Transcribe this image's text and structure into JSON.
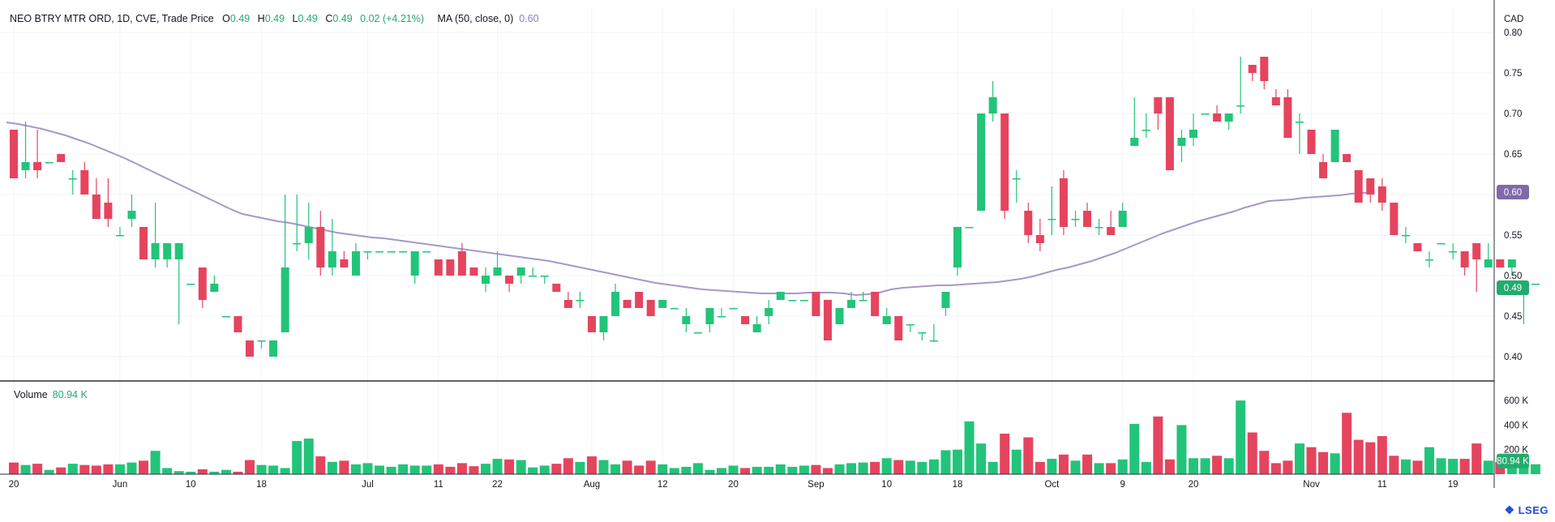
{
  "header": {
    "symbol": "NEO BTRY MTR ORD, 1D, CVE, Trade Price",
    "o_label": "O",
    "o_value": "0.49",
    "h_label": "H",
    "h_value": "0.49",
    "l_label": "L",
    "l_value": "0.49",
    "c_label": "C",
    "c_value": "0.49",
    "change": "0.02 (+4.21%)",
    "ma_label": "MA (50, close, 0)",
    "ma_value": "0.60"
  },
  "volume_header": {
    "label": "Volume",
    "value": "80.94 K"
  },
  "currency": "CAD",
  "logo": {
    "text": "LSEG"
  },
  "colors": {
    "up": "#22c47a",
    "down": "#e5445f",
    "ma": "#a896cc",
    "grid": "#f0f3fa",
    "axis_text": "#131722"
  },
  "badges": {
    "ma": "0.60",
    "last": "0.49",
    "volume": "80.94 K"
  },
  "chart_data": {
    "type": "candlestick",
    "y_ticks": [
      "0.80",
      "0.75",
      "0.70",
      "0.65",
      "0.60",
      "0.55",
      "0.50",
      "0.45",
      "0.40"
    ],
    "ylim": [
      0.37,
      0.83
    ],
    "volume_ticks": [
      "600 K",
      "400 K",
      "200 K"
    ],
    "volume_ylim": [
      0,
      680
    ],
    "x_ticks": [
      {
        "label": "20",
        "i": 0
      },
      {
        "label": "Jun",
        "i": 9
      },
      {
        "label": "10",
        "i": 15
      },
      {
        "label": "18",
        "i": 21
      },
      {
        "label": "Jul",
        "i": 30
      },
      {
        "label": "11",
        "i": 36
      },
      {
        "label": "22",
        "i": 41
      },
      {
        "label": "Aug",
        "i": 49
      },
      {
        "label": "12",
        "i": 55
      },
      {
        "label": "20",
        "i": 61
      },
      {
        "label": "Sep",
        "i": 68
      },
      {
        "label": "10",
        "i": 74
      },
      {
        "label": "18",
        "i": 80
      },
      {
        "label": "Oct",
        "i": 88
      },
      {
        "label": "9",
        "i": 94
      },
      {
        "label": "20",
        "i": 100
      },
      {
        "label": "Nov",
        "i": 110
      },
      {
        "label": "11",
        "i": 116
      },
      {
        "label": "19",
        "i": 122
      }
    ],
    "candles": [
      [
        0.68,
        0.68,
        0.62,
        0.62,
        95
      ],
      [
        0.63,
        0.69,
        0.62,
        0.64,
        75
      ],
      [
        0.64,
        0.68,
        0.62,
        0.63,
        85
      ],
      [
        0.64,
        0.64,
        0.64,
        0.64,
        35
      ],
      [
        0.65,
        0.65,
        0.64,
        0.64,
        55
      ],
      [
        0.62,
        0.63,
        0.6,
        0.62,
        85
      ],
      [
        0.63,
        0.64,
        0.6,
        0.6,
        75
      ],
      [
        0.6,
        0.62,
        0.57,
        0.57,
        70
      ],
      [
        0.59,
        0.62,
        0.56,
        0.57,
        80
      ],
      [
        0.55,
        0.56,
        0.55,
        0.55,
        80
      ],
      [
        0.57,
        0.6,
        0.56,
        0.58,
        95
      ],
      [
        0.56,
        0.56,
        0.52,
        0.52,
        110
      ],
      [
        0.52,
        0.59,
        0.51,
        0.54,
        190
      ],
      [
        0.52,
        0.54,
        0.51,
        0.54,
        50
      ],
      [
        0.52,
        0.54,
        0.44,
        0.54,
        25
      ],
      [
        0.49,
        0.49,
        0.49,
        0.49,
        20
      ],
      [
        0.51,
        0.51,
        0.46,
        0.47,
        40
      ],
      [
        0.48,
        0.5,
        0.48,
        0.49,
        20
      ],
      [
        0.45,
        0.45,
        0.45,
        0.45,
        35
      ],
      [
        0.45,
        0.45,
        0.43,
        0.43,
        20
      ],
      [
        0.42,
        0.42,
        0.4,
        0.4,
        115
      ],
      [
        0.42,
        0.42,
        0.41,
        0.42,
        75
      ],
      [
        0.4,
        0.42,
        0.4,
        0.42,
        70
      ],
      [
        0.43,
        0.6,
        0.43,
        0.51,
        50
      ],
      [
        0.54,
        0.6,
        0.53,
        0.54,
        270
      ],
      [
        0.54,
        0.59,
        0.52,
        0.56,
        290
      ],
      [
        0.56,
        0.58,
        0.5,
        0.51,
        145
      ],
      [
        0.51,
        0.57,
        0.5,
        0.53,
        100
      ],
      [
        0.52,
        0.53,
        0.51,
        0.51,
        110
      ],
      [
        0.5,
        0.54,
        0.5,
        0.53,
        80
      ],
      [
        0.53,
        0.53,
        0.52,
        0.53,
        90
      ],
      [
        0.53,
        0.53,
        0.53,
        0.53,
        70
      ],
      [
        0.53,
        0.53,
        0.53,
        0.53,
        60
      ],
      [
        0.53,
        0.53,
        0.53,
        0.53,
        80
      ],
      [
        0.5,
        0.53,
        0.49,
        0.53,
        70
      ],
      [
        0.53,
        0.53,
        0.53,
        0.53,
        70
      ],
      [
        0.52,
        0.52,
        0.5,
        0.5,
        80
      ],
      [
        0.52,
        0.52,
        0.5,
        0.5,
        60
      ],
      [
        0.53,
        0.54,
        0.5,
        0.5,
        90
      ],
      [
        0.51,
        0.51,
        0.5,
        0.5,
        65
      ],
      [
        0.49,
        0.51,
        0.48,
        0.5,
        85
      ],
      [
        0.5,
        0.53,
        0.5,
        0.51,
        125
      ],
      [
        0.5,
        0.5,
        0.48,
        0.49,
        120
      ],
      [
        0.5,
        0.51,
        0.49,
        0.51,
        115
      ],
      [
        0.5,
        0.51,
        0.5,
        0.5,
        55
      ],
      [
        0.5,
        0.5,
        0.49,
        0.5,
        70
      ],
      [
        0.49,
        0.49,
        0.48,
        0.48,
        85
      ],
      [
        0.47,
        0.48,
        0.46,
        0.46,
        130
      ],
      [
        0.47,
        0.48,
        0.46,
        0.47,
        100
      ],
      [
        0.45,
        0.45,
        0.43,
        0.43,
        145
      ],
      [
        0.43,
        0.45,
        0.42,
        0.45,
        115
      ],
      [
        0.45,
        0.49,
        0.45,
        0.48,
        80
      ],
      [
        0.47,
        0.47,
        0.46,
        0.46,
        110
      ],
      [
        0.48,
        0.48,
        0.46,
        0.46,
        70
      ],
      [
        0.47,
        0.47,
        0.45,
        0.45,
        110
      ],
      [
        0.46,
        0.47,
        0.46,
        0.47,
        80
      ],
      [
        0.46,
        0.46,
        0.46,
        0.46,
        50
      ],
      [
        0.44,
        0.46,
        0.43,
        0.45,
        60
      ],
      [
        0.43,
        0.43,
        0.43,
        0.43,
        90
      ],
      [
        0.44,
        0.46,
        0.43,
        0.46,
        35
      ],
      [
        0.45,
        0.46,
        0.45,
        0.45,
        50
      ],
      [
        0.46,
        0.46,
        0.46,
        0.46,
        70
      ],
      [
        0.45,
        0.45,
        0.44,
        0.44,
        50
      ],
      [
        0.43,
        0.45,
        0.43,
        0.44,
        60
      ],
      [
        0.45,
        0.47,
        0.44,
        0.46,
        60
      ],
      [
        0.47,
        0.48,
        0.47,
        0.48,
        80
      ],
      [
        0.47,
        0.47,
        0.47,
        0.47,
        60
      ],
      [
        0.47,
        0.47,
        0.47,
        0.47,
        70
      ],
      [
        0.48,
        0.48,
        0.45,
        0.45,
        75
      ],
      [
        0.47,
        0.47,
        0.42,
        0.42,
        50
      ],
      [
        0.44,
        0.46,
        0.44,
        0.46,
        80
      ],
      [
        0.46,
        0.48,
        0.46,
        0.47,
        90
      ],
      [
        0.47,
        0.48,
        0.47,
        0.47,
        95
      ],
      [
        0.48,
        0.48,
        0.45,
        0.45,
        100
      ],
      [
        0.44,
        0.46,
        0.44,
        0.45,
        130
      ],
      [
        0.45,
        0.45,
        0.42,
        0.42,
        115
      ],
      [
        0.44,
        0.44,
        0.43,
        0.44,
        110
      ],
      [
        0.43,
        0.43,
        0.42,
        0.43,
        100
      ],
      [
        0.42,
        0.44,
        0.42,
        0.42,
        120
      ],
      [
        0.46,
        0.48,
        0.45,
        0.48,
        195
      ],
      [
        0.51,
        0.56,
        0.5,
        0.56,
        200
      ],
      [
        0.56,
        0.56,
        0.56,
        0.56,
        430
      ],
      [
        0.58,
        0.7,
        0.58,
        0.7,
        250
      ],
      [
        0.7,
        0.74,
        0.69,
        0.72,
        100
      ],
      [
        0.7,
        0.7,
        0.57,
        0.58,
        330
      ],
      [
        0.62,
        0.63,
        0.59,
        0.62,
        200
      ],
      [
        0.58,
        0.59,
        0.54,
        0.55,
        300
      ],
      [
        0.55,
        0.57,
        0.53,
        0.54,
        100
      ],
      [
        0.57,
        0.61,
        0.55,
        0.57,
        125
      ],
      [
        0.62,
        0.63,
        0.55,
        0.56,
        160
      ],
      [
        0.57,
        0.58,
        0.56,
        0.57,
        110
      ],
      [
        0.58,
        0.59,
        0.56,
        0.56,
        160
      ],
      [
        0.56,
        0.57,
        0.55,
        0.56,
        90
      ],
      [
        0.56,
        0.58,
        0.55,
        0.55,
        90
      ],
      [
        0.56,
        0.59,
        0.56,
        0.58,
        120
      ],
      [
        0.66,
        0.72,
        0.66,
        0.67,
        410
      ],
      [
        0.68,
        0.7,
        0.67,
        0.68,
        100
      ],
      [
        0.72,
        0.72,
        0.68,
        0.7,
        470
      ],
      [
        0.72,
        0.72,
        0.63,
        0.63,
        120
      ],
      [
        0.66,
        0.68,
        0.64,
        0.67,
        400
      ],
      [
        0.67,
        0.7,
        0.66,
        0.68,
        130
      ],
      [
        0.7,
        0.7,
        0.7,
        0.7,
        130
      ],
      [
        0.7,
        0.71,
        0.69,
        0.69,
        150
      ],
      [
        0.69,
        0.7,
        0.68,
        0.7,
        130
      ],
      [
        0.71,
        0.77,
        0.7,
        0.71,
        600
      ],
      [
        0.76,
        0.76,
        0.74,
        0.75,
        340
      ],
      [
        0.77,
        0.77,
        0.73,
        0.74,
        190
      ],
      [
        0.72,
        0.73,
        0.71,
        0.71,
        90
      ],
      [
        0.72,
        0.73,
        0.67,
        0.67,
        110
      ],
      [
        0.69,
        0.7,
        0.65,
        0.69,
        250
      ],
      [
        0.68,
        0.68,
        0.65,
        0.65,
        220
      ],
      [
        0.64,
        0.65,
        0.62,
        0.62,
        180
      ],
      [
        0.64,
        0.68,
        0.64,
        0.68,
        170
      ],
      [
        0.65,
        0.65,
        0.64,
        0.64,
        500
      ],
      [
        0.63,
        0.63,
        0.59,
        0.59,
        280
      ],
      [
        0.62,
        0.62,
        0.59,
        0.6,
        260
      ],
      [
        0.61,
        0.62,
        0.58,
        0.59,
        310
      ],
      [
        0.59,
        0.59,
        0.55,
        0.55,
        150
      ],
      [
        0.55,
        0.56,
        0.54,
        0.55,
        120
      ],
      [
        0.54,
        0.54,
        0.53,
        0.53,
        110
      ],
      [
        0.52,
        0.53,
        0.51,
        0.52,
        220
      ],
      [
        0.54,
        0.54,
        0.54,
        0.54,
        130
      ],
      [
        0.53,
        0.54,
        0.52,
        0.53,
        125
      ],
      [
        0.53,
        0.53,
        0.5,
        0.51,
        125
      ],
      [
        0.54,
        0.54,
        0.48,
        0.52,
        250
      ],
      [
        0.51,
        0.54,
        0.51,
        0.52,
        110
      ],
      [
        0.52,
        0.52,
        0.51,
        0.51,
        100
      ],
      [
        0.51,
        0.52,
        0.5,
        0.52,
        110
      ],
      [
        0.48,
        0.48,
        0.44,
        0.48,
        80.94
      ],
      [
        0.49,
        0.49,
        0.49,
        0.49,
        80.94
      ]
    ],
    "ma": [
      0.689,
      0.687,
      0.684,
      0.681,
      0.677,
      0.673,
      0.668,
      0.663,
      0.657,
      0.651,
      0.645,
      0.638,
      0.631,
      0.624,
      0.617,
      0.61,
      0.603,
      0.596,
      0.589,
      0.582,
      0.576,
      0.573,
      0.57,
      0.567,
      0.565,
      0.562,
      0.559,
      0.556,
      0.553,
      0.551,
      0.549,
      0.547,
      0.546,
      0.544,
      0.542,
      0.54,
      0.538,
      0.536,
      0.534,
      0.532,
      0.53,
      0.528,
      0.526,
      0.524,
      0.522,
      0.52,
      0.518,
      0.515,
      0.512,
      0.509,
      0.506,
      0.503,
      0.5,
      0.497,
      0.494,
      0.491,
      0.489,
      0.487,
      0.485,
      0.483,
      0.482,
      0.481,
      0.48,
      0.479,
      0.478,
      0.478,
      0.478,
      0.478,
      0.479,
      0.479,
      0.479,
      0.478,
      0.476,
      0.477,
      0.479,
      0.483,
      0.485,
      0.486,
      0.487,
      0.488,
      0.488,
      0.489,
      0.49,
      0.491,
      0.492,
      0.494,
      0.496,
      0.499,
      0.503,
      0.507,
      0.51,
      0.514,
      0.518,
      0.523,
      0.528,
      0.534,
      0.54,
      0.546,
      0.552,
      0.557,
      0.562,
      0.567,
      0.571,
      0.575,
      0.579,
      0.584,
      0.588,
      0.592,
      0.593,
      0.594,
      0.596,
      0.597,
      0.598,
      0.599,
      0.601,
      0.602,
      0.603
    ]
  }
}
